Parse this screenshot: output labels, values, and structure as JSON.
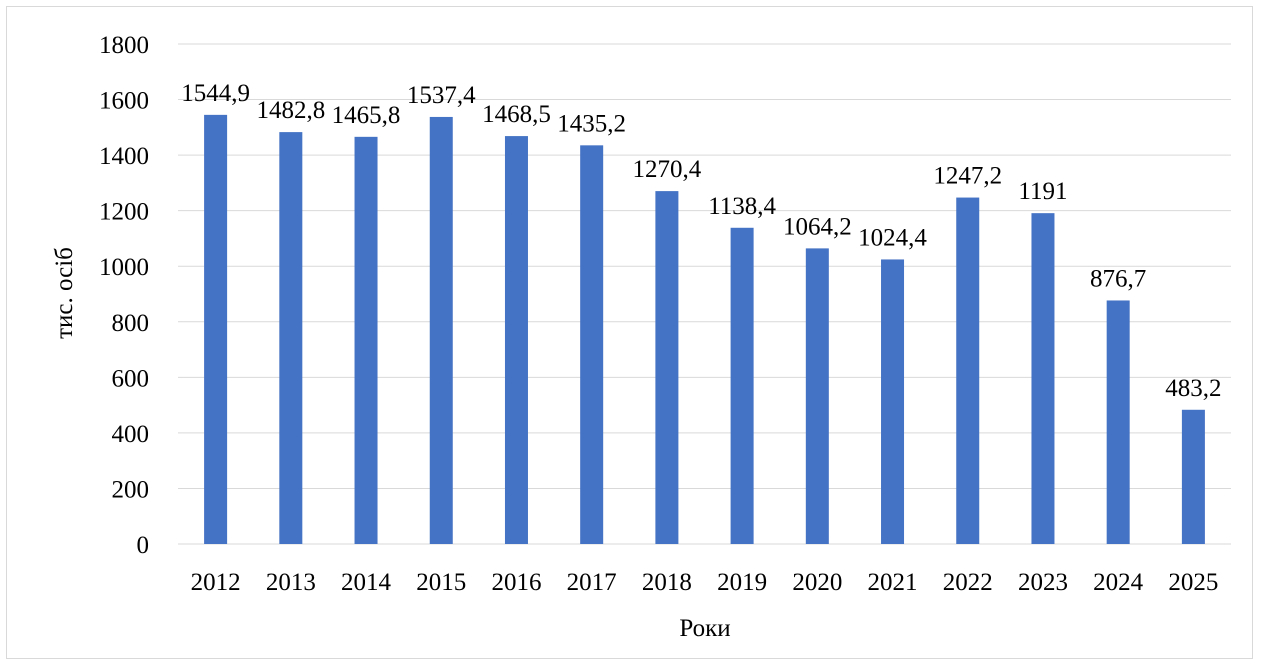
{
  "chart_data": {
    "type": "bar",
    "categories": [
      "2012",
      "2013",
      "2014",
      "2015",
      "2016",
      "2017",
      "2018",
      "2019",
      "2020",
      "2021",
      "2022",
      "2023",
      "2024",
      "2025"
    ],
    "values": [
      1544.9,
      1482.8,
      1465.8,
      1537.4,
      1468.5,
      1435.2,
      1270.4,
      1138.4,
      1064.2,
      1024.4,
      1247.2,
      1191,
      876.7,
      483.2
    ],
    "data_labels": [
      "1544,9",
      "1482,8",
      "1465,8",
      "1537,4",
      "1468,5",
      "1435,2",
      "1270,4",
      "1138,4",
      "1064,2",
      "1024,4",
      "1247,2",
      "1191",
      "876,7",
      "483,2"
    ],
    "xlabel": "Роки",
    "ylabel": "тис. осіб",
    "ylim": [
      0,
      1800
    ],
    "yticks": [
      "0",
      "200",
      "400",
      "600",
      "800",
      "1000",
      "1200",
      "1400",
      "1600",
      "1800"
    ],
    "grid": true,
    "legend": "none",
    "bar_color": "#4472c4",
    "grid_color": "#d9d9d9"
  }
}
